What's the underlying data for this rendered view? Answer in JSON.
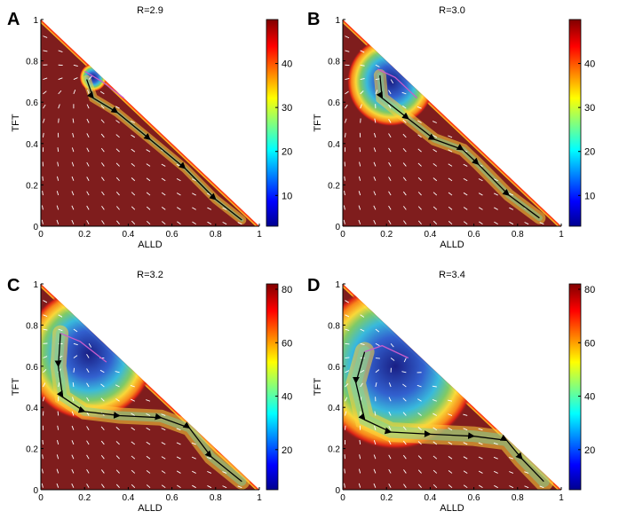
{
  "chart_data": [
    {
      "type": "heatmap",
      "panel": "A",
      "title": "R=2.9",
      "xlabel": "ALLD",
      "ylabel": "TFT",
      "xlim": [
        0,
        1
      ],
      "ylim": [
        0,
        1
      ],
      "x_ticks": [
        "0",
        "0.2",
        "0.4",
        "0.6",
        "0.8",
        "1"
      ],
      "y_ticks": [
        "0",
        "0.2",
        "0.4",
        "0.6",
        "0.8",
        "1"
      ],
      "colorbar": {
        "min": 3,
        "max": 50,
        "ticks": [
          "10",
          "20",
          "30",
          "40"
        ],
        "tick_values": [
          10,
          20,
          30,
          40
        ]
      },
      "basin": {
        "center": [
          0.24,
          0.72
        ],
        "radius": 0.05
      },
      "trajectory_black": [
        [
          0.21,
          0.71
        ],
        [
          0.24,
          0.62
        ],
        [
          0.35,
          0.55
        ],
        [
          0.5,
          0.42
        ],
        [
          0.66,
          0.28
        ],
        [
          0.8,
          0.13
        ],
        [
          0.92,
          0.03
        ]
      ],
      "trajectory_magenta": [
        [
          0.2,
          0.75
        ],
        [
          0.28,
          0.7
        ],
        [
          0.38,
          0.62
        ]
      ]
    },
    {
      "type": "heatmap",
      "panel": "B",
      "title": "R=3.0",
      "xlabel": "ALLD",
      "ylabel": "TFT",
      "xlim": [
        0,
        1
      ],
      "ylim": [
        0,
        1
      ],
      "x_ticks": [
        "0",
        "0.2",
        "0.4",
        "0.6",
        "0.8",
        "1"
      ],
      "y_ticks": [
        "0",
        "0.2",
        "0.4",
        "0.6",
        "0.8",
        "1"
      ],
      "colorbar": {
        "min": 3,
        "max": 50,
        "ticks": [
          "10",
          "20",
          "30",
          "40"
        ],
        "tick_values": [
          10,
          20,
          30,
          40
        ]
      },
      "basin": {
        "center": [
          0.22,
          0.7
        ],
        "radius": 0.16
      },
      "trajectory_black": [
        [
          0.17,
          0.73
        ],
        [
          0.18,
          0.62
        ],
        [
          0.3,
          0.52
        ],
        [
          0.42,
          0.42
        ],
        [
          0.55,
          0.37
        ],
        [
          0.62,
          0.3
        ],
        [
          0.76,
          0.15
        ],
        [
          0.9,
          0.04
        ]
      ],
      "trajectory_magenta": [
        [
          0.16,
          0.76
        ],
        [
          0.24,
          0.72
        ],
        [
          0.34,
          0.62
        ]
      ]
    },
    {
      "type": "heatmap",
      "panel": "C",
      "title": "R=3.2",
      "xlabel": "ALLD",
      "ylabel": "TFT",
      "xlim": [
        0,
        1
      ],
      "ylim": [
        0,
        1
      ],
      "x_ticks": [
        "0",
        "0.2",
        "0.4",
        "0.6",
        "0.8",
        "1"
      ],
      "y_ticks": [
        "0",
        "0.2",
        "0.4",
        "0.6",
        "0.8",
        "1"
      ],
      "colorbar": {
        "min": 5,
        "max": 82,
        "ticks": [
          "20",
          "40",
          "60",
          "80"
        ],
        "tick_values": [
          20,
          40,
          60,
          80
        ]
      },
      "basin": {
        "center": [
          0.22,
          0.66
        ],
        "radius": 0.24
      },
      "trajectory_black": [
        [
          0.09,
          0.76
        ],
        [
          0.08,
          0.6
        ],
        [
          0.1,
          0.45
        ],
        [
          0.2,
          0.38
        ],
        [
          0.36,
          0.36
        ],
        [
          0.55,
          0.35
        ],
        [
          0.68,
          0.3
        ],
        [
          0.78,
          0.16
        ],
        [
          0.92,
          0.04
        ]
      ],
      "trajectory_magenta": [
        [
          0.09,
          0.76
        ],
        [
          0.18,
          0.72
        ],
        [
          0.3,
          0.62
        ]
      ]
    },
    {
      "type": "heatmap",
      "panel": "D",
      "title": "R=3.4",
      "xlabel": "ALLD",
      "ylabel": "TFT",
      "xlim": [
        0,
        1
      ],
      "ylim": [
        0,
        1
      ],
      "x_ticks": [
        "0",
        "0.2",
        "0.4",
        "0.6",
        "0.8",
        "1"
      ],
      "y_ticks": [
        "0",
        "0.2",
        "0.4",
        "0.6",
        "0.8",
        "1"
      ],
      "colorbar": {
        "min": 5,
        "max": 82,
        "ticks": [
          "20",
          "40",
          "60",
          "80"
        ],
        "tick_values": [
          20,
          40,
          60,
          80
        ]
      },
      "basin": {
        "center": [
          0.24,
          0.6
        ],
        "radius": 0.3
      },
      "trajectory_black": [
        [
          0.1,
          0.67
        ],
        [
          0.06,
          0.52
        ],
        [
          0.1,
          0.34
        ],
        [
          0.22,
          0.28
        ],
        [
          0.4,
          0.27
        ],
        [
          0.6,
          0.26
        ],
        [
          0.75,
          0.24
        ],
        [
          0.82,
          0.15
        ],
        [
          0.92,
          0.04
        ]
      ],
      "trajectory_magenta": [
        [
          0.1,
          0.67
        ],
        [
          0.18,
          0.7
        ],
        [
          0.3,
          0.64
        ]
      ]
    }
  ],
  "colors": {
    "background": "#7f1d1d",
    "magenta_trajectory": "#c85ccc",
    "black_trajectory": "#000000",
    "arrows": "#ffffff"
  }
}
